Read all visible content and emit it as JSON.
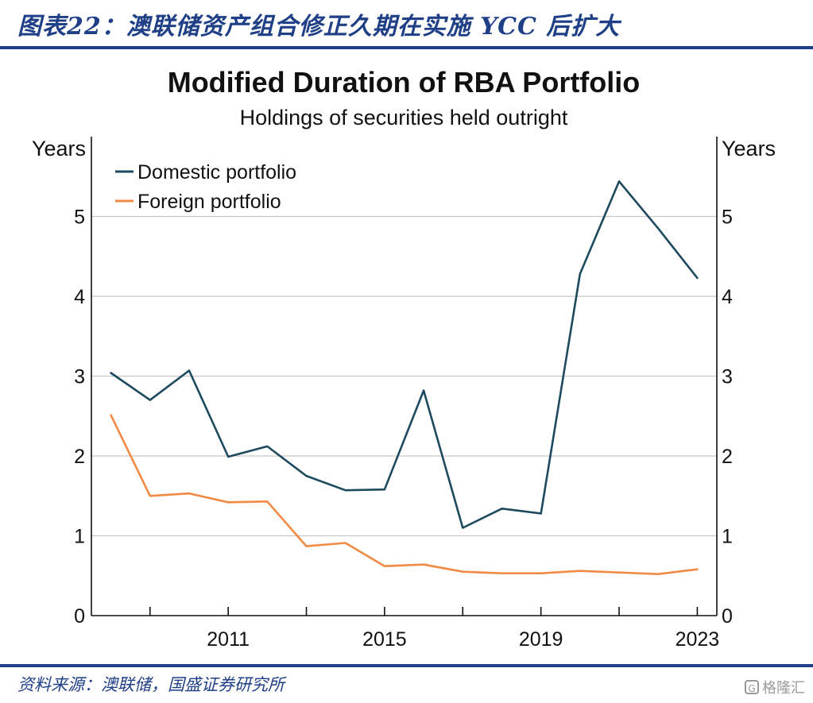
{
  "header": {
    "figure_title": "图表22：澳联储资产组合修正久期在实施 YCC 后扩大"
  },
  "footer": {
    "source": "资料来源：澳联储，国盛证券研究所",
    "watermark": "格隆汇"
  },
  "colors": {
    "brand": "#1f3f86",
    "domestic": "#1d4a5e",
    "foreign": "#f08a45",
    "grid": "#c8c8c8"
  },
  "chart_data": {
    "type": "line",
    "title": "Modified Duration of RBA Portfolio",
    "subtitle": "Holdings of securities held outright",
    "ylabel_left": "Years",
    "ylabel_right": "Years",
    "xlim": [
      2007.5,
      2023.5
    ],
    "ylim": [
      0,
      6
    ],
    "yticks": [
      0,
      1,
      2,
      3,
      4,
      5
    ],
    "xtick_labels": [
      "2011",
      "2015",
      "2019",
      "2023"
    ],
    "xtick_label_values": [
      2011,
      2015,
      2019,
      2023
    ],
    "xtick_marks": [
      2009,
      2011,
      2013,
      2015,
      2017,
      2019,
      2021,
      2023
    ],
    "x": [
      2008,
      2009,
      2010,
      2011,
      2012,
      2013,
      2014,
      2015,
      2016,
      2017,
      2018,
      2019,
      2020,
      2021,
      2022,
      2023
    ],
    "legend_position": "top-left",
    "grid": true,
    "series": [
      {
        "name": "Domestic portfolio",
        "color": "#1d4a5e",
        "values": [
          3.04,
          2.7,
          3.07,
          1.99,
          2.12,
          1.75,
          1.57,
          1.58,
          2.82,
          1.1,
          1.34,
          1.28,
          4.28,
          5.44,
          4.85,
          4.23
        ]
      },
      {
        "name": "Foreign portfolio",
        "color": "#f08a45",
        "values": [
          2.51,
          1.5,
          1.53,
          1.42,
          1.43,
          0.87,
          0.91,
          0.62,
          0.64,
          0.55,
          0.53,
          0.53,
          0.56,
          0.54,
          0.52,
          0.58
        ]
      }
    ]
  }
}
